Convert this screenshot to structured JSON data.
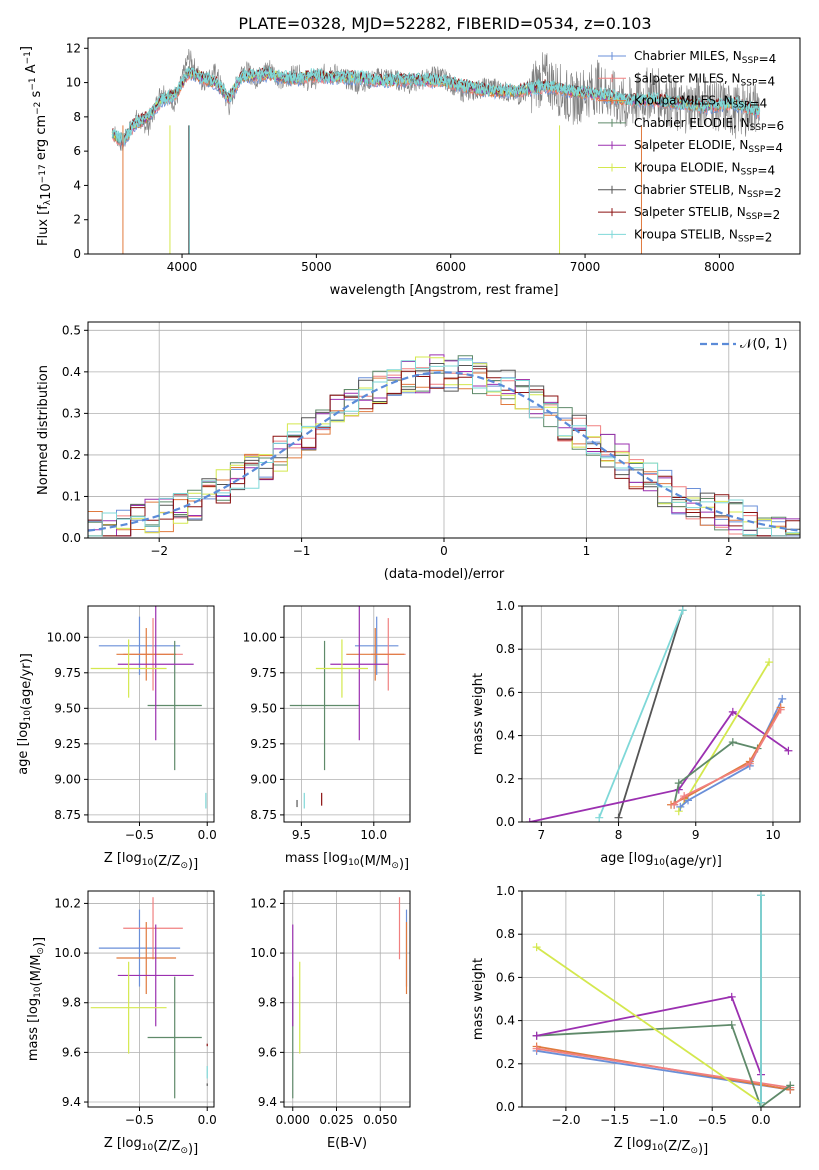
{
  "figure_title": "PLATE=0328, MJD=52282, FIBERID=0534, z=0.103",
  "colors": {
    "chabrier_miles": "#6a8fd8",
    "salpeter_miles": "#f08080",
    "kroupa_miles": "#e07a3e",
    "chabrier_elodie": "#5f8a6a",
    "salpeter_elodie": "#9b30b0",
    "kroupa_elodie": "#d4e84e",
    "chabrier_stelib": "#555555",
    "salpeter_stelib": "#8b1010",
    "kroupa_stelib": "#7fd8d8",
    "gaussian": "#5b8bd8",
    "grid": "#b0b0b0"
  },
  "chart_data": [
    {
      "id": "spectrum",
      "type": "line",
      "xlabel": "wavelength [Angstrom, rest frame]",
      "ylabel": "Flux [f",
      "ylabel_sub": "λ",
      "ylabel_tail": "10",
      "ylabel_sup1": "−17",
      "ylabel_tail2": " erg cm",
      "ylabel_sup2": "−2",
      "ylabel_tail3": " s",
      "ylabel_sup3": "−1",
      "ylabel_tail4": " A",
      "ylabel_sup4": "−1",
      "ylabel_tail5": "]",
      "xlim": [
        3300,
        8600
      ],
      "ylim": [
        0,
        12.6
      ],
      "xticks": [
        4000,
        5000,
        6000,
        7000,
        8000
      ],
      "yticks": [
        0,
        2,
        4,
        6,
        8,
        10,
        12
      ],
      "grid": false,
      "legend_position": "upper-right",
      "data_x": [
        3480,
        3560,
        3650,
        3750,
        3850,
        3950,
        4050,
        4150,
        4250,
        4350,
        4450,
        4550,
        4650,
        4750,
        4850,
        4950,
        5100,
        5300,
        5500,
        5700,
        5900,
        6100,
        6300,
        6500,
        6700,
        6900,
        7100,
        7300,
        7500,
        7700,
        7900,
        8100,
        8300
      ],
      "model_y": [
        7.0,
        6.6,
        7.6,
        8.0,
        9.0,
        9.3,
        10.6,
        10.3,
        10.0,
        9.1,
        10.4,
        10.4,
        10.5,
        10.3,
        10.2,
        10.4,
        10.3,
        10.3,
        10.1,
        10.2,
        10.1,
        9.8,
        9.5,
        9.5,
        9.8,
        9.5,
        9.3,
        9.0,
        9.0,
        8.8,
        8.6,
        8.8,
        8.3
      ],
      "data_y": [
        7.2,
        6.4,
        7.9,
        7.5,
        9.6,
        8.8,
        11.5,
        10.0,
        10.6,
        8.6,
        10.9,
        10.2,
        10.9,
        10.0,
        10.6,
        10.0,
        10.7,
        9.9,
        10.4,
        9.9,
        10.5,
        9.4,
        9.8,
        9.2,
        10.3,
        9.0,
        9.8,
        8.6,
        9.5,
        8.5,
        9.0,
        8.3,
        8.6
      ],
      "legend": [
        {
          "name": "Chabrier MILES, N",
          "sub": "SSP",
          "tail": "=4"
        },
        {
          "name": "Salpeter MILES, N",
          "sub": "SSP",
          "tail": "=4"
        },
        {
          "name": "Kroupa MILES, N",
          "sub": "SSP",
          "tail": "=4"
        },
        {
          "name": "Chabrier ELODIE, N",
          "sub": "SSP",
          "tail": "=6"
        },
        {
          "name": "Salpeter ELODIE, N",
          "sub": "SSP",
          "tail": "=4"
        },
        {
          "name": "Kroupa ELODIE, N",
          "sub": "SSP",
          "tail": "=4"
        },
        {
          "name": "Chabrier STELIB, N",
          "sub": "SSP",
          "tail": "=2"
        },
        {
          "name": "Salpeter STELIB, N",
          "sub": "SSP",
          "tail": "=2"
        },
        {
          "name": "Kroupa STELIB, N",
          "sub": "SSP",
          "tail": "=2"
        }
      ]
    },
    {
      "id": "residuals",
      "type": "line",
      "xlabel": "(data-model)/error",
      "ylabel": "Normed distribution",
      "xlim": [
        -2.5,
        2.5
      ],
      "ylim": [
        0,
        0.52
      ],
      "xticks": [
        -2,
        -1,
        0,
        1,
        2
      ],
      "yticks": [
        0.0,
        0.1,
        0.2,
        0.3,
        0.4,
        0.5
      ],
      "grid": true,
      "legend_position": "upper-right",
      "gaussian_label": "𝒩(0, 1)",
      "bin_edges_start": -2.5,
      "bin_width": 0.1
    },
    {
      "id": "age_vs_Z",
      "type": "scatter",
      "xlabel": "Z [log",
      "xlabel_sub": "10",
      "xlabel_tail": "(Z/Z",
      "xlabel_sub2": "⊙",
      "xlabel_tail2": ")]",
      "ylabel": "age  [log",
      "ylabel_sub": "10",
      "ylabel_tail": "(age/yr)]",
      "xlim": [
        -0.88,
        0.05
      ],
      "ylim": [
        8.7,
        10.22
      ],
      "xticks": [
        -0.5,
        0.0
      ],
      "yticks": [
        8.75,
        9.0,
        9.25,
        9.5,
        9.75,
        10.0
      ],
      "grid": true,
      "points": [
        {
          "c": "chabrier_miles",
          "x": -0.5,
          "xe": 0.3,
          "y": 9.94,
          "ye": 0.2
        },
        {
          "c": "salpeter_miles",
          "x": -0.4,
          "xe": 0.22,
          "y": 9.88,
          "ye": 0.25
        },
        {
          "c": "kroupa_miles",
          "x": -0.45,
          "xe": 0.22,
          "y": 9.88,
          "ye": 0.18
        },
        {
          "c": "chabrier_elodie",
          "x": -0.24,
          "xe": 0.2,
          "y": 9.52,
          "ye": 0.45
        },
        {
          "c": "salpeter_elodie",
          "x": -0.38,
          "xe": 0.28,
          "y": 9.81,
          "ye": 0.53
        },
        {
          "c": "kroupa_elodie",
          "x": -0.58,
          "xe": 0.28,
          "y": 9.78,
          "ye": 0.2
        },
        {
          "c": "kroupa_stelib",
          "x": -0.01,
          "xe": 0.0,
          "y": 8.85,
          "ye": 0.05
        }
      ]
    },
    {
      "id": "age_vs_mass",
      "type": "scatter",
      "xlabel": "mass [log",
      "xlabel_sub": "10",
      "xlabel_tail": "(M/M",
      "xlabel_sub2": "⊙",
      "xlabel_tail2": ")]",
      "xlim": [
        9.38,
        10.25
      ],
      "ylim": [
        8.7,
        10.22
      ],
      "xticks": [
        9.5,
        10.0
      ],
      "yticks": [
        8.75,
        9.0,
        9.25,
        9.5,
        9.75,
        10.0
      ],
      "grid": true,
      "points": [
        {
          "c": "chabrier_miles",
          "x": 10.02,
          "xe": 0.15,
          "y": 9.94,
          "ye": 0.2
        },
        {
          "c": "salpeter_miles",
          "x": 10.1,
          "xe": 0.12,
          "y": 9.88,
          "ye": 0.25
        },
        {
          "c": "kroupa_miles",
          "x": 10.01,
          "xe": 0.2,
          "y": 9.88,
          "ye": 0.18
        },
        {
          "c": "chabrier_elodie",
          "x": 9.66,
          "xe": 0.24,
          "y": 9.52,
          "ye": 0.45
        },
        {
          "c": "salpeter_elodie",
          "x": 9.9,
          "xe": 0.2,
          "y": 9.81,
          "ye": 0.53
        },
        {
          "c": "kroupa_elodie",
          "x": 9.78,
          "xe": 0.18,
          "y": 9.78,
          "ye": 0.2
        },
        {
          "c": "salpeter_stelib",
          "x": 9.64,
          "xe": 0.0,
          "y": 8.86,
          "ye": 0.04
        },
        {
          "c": "kroupa_stelib",
          "x": 9.52,
          "xe": 0.0,
          "y": 8.85,
          "ye": 0.05
        },
        {
          "c": "chabrier_stelib",
          "x": 9.47,
          "xe": 0.0,
          "y": 8.83,
          "ye": 0.02
        }
      ]
    },
    {
      "id": "mass_weight_vs_age",
      "type": "line",
      "xlabel": "age  [log",
      "xlabel_sub": "10",
      "xlabel_tail": "(age/yr)]",
      "ylabel": "mass weight",
      "xlim": [
        6.75,
        10.35
      ],
      "ylim": [
        0,
        1.0
      ],
      "xticks": [
        7,
        8,
        9,
        10
      ],
      "yticks": [
        0.0,
        0.2,
        0.4,
        0.6,
        0.8,
        1.0
      ],
      "grid": true,
      "series": [
        {
          "c": "chabrier_stelib",
          "x": [
            8.0,
            8.83
          ],
          "y": [
            0.02,
            0.98
          ]
        },
        {
          "c": "kroupa_stelib",
          "x": [
            7.75,
            8.83
          ],
          "y": [
            0.02,
            0.98
          ]
        },
        {
          "c": "salpeter_elodie",
          "x": [
            6.85,
            8.78,
            9.48,
            10.2
          ],
          "y": [
            0.0,
            0.15,
            0.51,
            0.33
          ]
        },
        {
          "c": "kroupa_elodie",
          "x": [
            8.78,
            9.95
          ],
          "y": [
            0.05,
            0.74
          ]
        },
        {
          "c": "chabrier_elodie",
          "x": [
            8.72,
            8.78,
            9.48,
            9.8
          ],
          "y": [
            0.08,
            0.18,
            0.37,
            0.34
          ]
        },
        {
          "c": "chabrier_miles",
          "x": [
            8.8,
            8.9,
            9.7,
            10.12
          ],
          "y": [
            0.07,
            0.1,
            0.26,
            0.57
          ]
        },
        {
          "c": "kroupa_miles",
          "x": [
            8.68,
            8.85,
            9.7,
            10.1
          ],
          "y": [
            0.08,
            0.11,
            0.28,
            0.53
          ]
        },
        {
          "c": "salpeter_miles",
          "x": [
            8.72,
            8.85,
            9.7,
            10.1
          ],
          "y": [
            0.08,
            0.12,
            0.27,
            0.52
          ]
        }
      ]
    },
    {
      "id": "mass_vs_Z",
      "type": "scatter",
      "xlabel": "Z [log",
      "xlabel_sub": "10",
      "xlabel_tail": "(Z/Z",
      "xlabel_sub2": "⊙",
      "xlabel_tail2": ")]",
      "ylabel": "mass [log",
      "ylabel_sub": "10",
      "ylabel_tail": "(M/M",
      "ylabel_sub2": "⊙",
      "ylabel_tail2": ")]",
      "xlim": [
        -0.88,
        0.05
      ],
      "ylim": [
        9.38,
        10.25
      ],
      "xticks": [
        -0.5,
        0.0
      ],
      "yticks": [
        9.4,
        9.6,
        9.8,
        10.0,
        10.2
      ],
      "grid": true,
      "points": [
        {
          "c": "chabrier_miles",
          "x": -0.5,
          "xe": 0.3,
          "y": 10.02,
          "ye": 0.15
        },
        {
          "c": "salpeter_miles",
          "x": -0.4,
          "xe": 0.22,
          "y": 10.1,
          "ye": 0.12
        },
        {
          "c": "kroupa_miles",
          "x": -0.45,
          "xe": 0.22,
          "y": 9.98,
          "ye": 0.14
        },
        {
          "c": "chabrier_elodie",
          "x": -0.24,
          "xe": 0.2,
          "y": 9.66,
          "ye": 0.24
        },
        {
          "c": "salpeter_elodie",
          "x": -0.38,
          "xe": 0.28,
          "y": 9.91,
          "ye": 0.2
        },
        {
          "c": "kroupa_elodie",
          "x": -0.58,
          "xe": 0.28,
          "y": 9.78,
          "ye": 0.18
        },
        {
          "c": "salpeter_stelib",
          "x": 0.0,
          "xe": 0.0,
          "y": 9.63,
          "ye": 0.0
        },
        {
          "c": "kroupa_stelib",
          "x": 0.0,
          "xe": 0.0,
          "y": 9.52,
          "ye": 0.02
        },
        {
          "c": "chabrier_stelib",
          "x": 0.0,
          "xe": 0.0,
          "y": 9.47,
          "ye": 0.0
        }
      ]
    },
    {
      "id": "mass_vs_ebv",
      "type": "scatter",
      "xlabel": "E(B-V)",
      "xlim": [
        -0.005,
        0.067
      ],
      "ylim": [
        9.38,
        10.25
      ],
      "xticks": [
        0.0,
        0.025,
        0.05
      ],
      "xtick_labels": [
        "0.000",
        "0.025",
        "0.050"
      ],
      "yticks": [
        9.4,
        9.6,
        9.8,
        10.0,
        10.2
      ],
      "grid": true,
      "points": [
        {
          "c": "chabrier_miles",
          "x": 0.065,
          "xe": 0.0,
          "y": 10.02,
          "ye": 0.15
        },
        {
          "c": "salpeter_miles",
          "x": 0.061,
          "xe": 0.0,
          "y": 10.1,
          "ye": 0.12
        },
        {
          "c": "kroupa_miles",
          "x": 0.065,
          "xe": 0.0,
          "y": 9.98,
          "ye": 0.14
        },
        {
          "c": "chabrier_elodie",
          "x": 0.0,
          "xe": 0.0,
          "y": 9.66,
          "ye": 0.24
        },
        {
          "c": "salpeter_elodie",
          "x": 0.0,
          "xe": 0.0,
          "y": 9.91,
          "ye": 0.2
        },
        {
          "c": "kroupa_elodie",
          "x": 0.004,
          "xe": 0.0,
          "y": 9.78,
          "ye": 0.18
        }
      ]
    },
    {
      "id": "mass_weight_vs_Z",
      "type": "line",
      "xlabel": "Z [log",
      "xlabel_sub": "10",
      "xlabel_tail": "(Z/Z",
      "xlabel_sub2": "⊙",
      "xlabel_tail2": ")]",
      "ylabel": "mass weight",
      "xlim": [
        -2.45,
        0.4
      ],
      "ylim": [
        0,
        1.0
      ],
      "xticks": [
        -2.0,
        -1.5,
        -1.0,
        -0.5,
        0.0
      ],
      "yticks": [
        0.0,
        0.2,
        0.4,
        0.6,
        0.8,
        1.0
      ],
      "grid": true,
      "series": [
        {
          "c": "chabrier_miles",
          "x": [
            -2.3,
            0.3
          ],
          "y": [
            0.26,
            0.08
          ]
        },
        {
          "c": "kroupa_miles",
          "x": [
            -2.3,
            0.3
          ],
          "y": [
            0.28,
            0.08
          ]
        },
        {
          "c": "salpeter_miles",
          "x": [
            -2.3,
            0.3
          ],
          "y": [
            0.27,
            0.09
          ]
        },
        {
          "c": "chabrier_elodie",
          "x": [
            -2.3,
            -0.3,
            0.0,
            0.3
          ],
          "y": [
            0.33,
            0.38,
            0.0,
            0.1
          ]
        },
        {
          "c": "salpeter_elodie",
          "x": [
            -2.3,
            -0.3,
            0.0
          ],
          "y": [
            0.33,
            0.51,
            0.15
          ]
        },
        {
          "c": "kroupa_elodie",
          "x": [
            -2.3,
            0.0
          ],
          "y": [
            0.74,
            0.02
          ]
        },
        {
          "c": "chabrier_stelib",
          "x": [
            0.0,
            0.0
          ],
          "y": [
            0.02,
            0.98
          ]
        },
        {
          "c": "kroupa_stelib",
          "x": [
            0.0,
            0.0
          ],
          "y": [
            0.02,
            0.98
          ]
        }
      ]
    }
  ]
}
